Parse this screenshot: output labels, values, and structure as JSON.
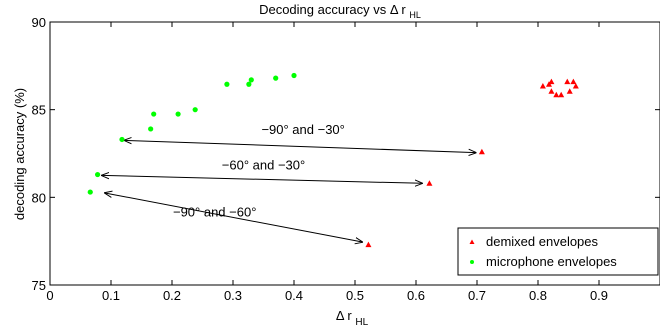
{
  "chart_data": {
    "type": "scatter",
    "title": "Decoding accuracy vs Δ r",
    "title_subscript": "HL",
    "xlabel": "Δ r",
    "xlabel_subscript": "HL",
    "ylabel": "decoding accuracy (%)",
    "xlim": [
      0,
      1
    ],
    "ylim": [
      75,
      90
    ],
    "xticks": [
      "0",
      "0.1",
      "0.2",
      "0.3",
      "0.4",
      "0.5",
      "0.6",
      "0.7",
      "0.8",
      "0.9"
    ],
    "yticks": [
      "75",
      "80",
      "85",
      "90"
    ],
    "grid": false,
    "legend_position": "bottom-right",
    "series": [
      {
        "name": "demixed envelopes",
        "marker": "triangle",
        "color": "#ff0000",
        "points": [
          {
            "x": 0.808,
            "y": 86.35
          },
          {
            "x": 0.818,
            "y": 86.45
          },
          {
            "x": 0.822,
            "y": 86.6
          },
          {
            "x": 0.822,
            "y": 86.05
          },
          {
            "x": 0.83,
            "y": 85.85
          },
          {
            "x": 0.838,
            "y": 85.85
          },
          {
            "x": 0.848,
            "y": 86.6
          },
          {
            "x": 0.852,
            "y": 86.05
          },
          {
            "x": 0.858,
            "y": 86.6
          },
          {
            "x": 0.862,
            "y": 86.35
          },
          {
            "x": 0.708,
            "y": 82.6
          },
          {
            "x": 0.622,
            "y": 80.8
          },
          {
            "x": 0.522,
            "y": 77.3
          }
        ]
      },
      {
        "name": "microphone envelopes",
        "marker": "circle",
        "color": "#00ff00",
        "points": [
          {
            "x": 0.066,
            "y": 80.3
          },
          {
            "x": 0.078,
            "y": 81.3
          },
          {
            "x": 0.118,
            "y": 83.3
          },
          {
            "x": 0.165,
            "y": 83.9
          },
          {
            "x": 0.17,
            "y": 84.75
          },
          {
            "x": 0.21,
            "y": 84.75
          },
          {
            "x": 0.238,
            "y": 85.0
          },
          {
            "x": 0.29,
            "y": 86.45
          },
          {
            "x": 0.326,
            "y": 86.45
          },
          {
            "x": 0.33,
            "y": 86.7
          },
          {
            "x": 0.37,
            "y": 86.8
          },
          {
            "x": 0.4,
            "y": 86.95
          }
        ]
      }
    ],
    "annotations": [
      {
        "text": "−90° and −30°",
        "from": {
          "x": 0.122,
          "y": 83.25
        },
        "to": {
          "x": 0.698,
          "y": 82.55
        },
        "label_at": {
          "x": 0.415,
          "y": 83.6
        }
      },
      {
        "text": "−60° and −30°",
        "from": {
          "x": 0.085,
          "y": 81.25
        },
        "to": {
          "x": 0.61,
          "y": 80.8
        },
        "label_at": {
          "x": 0.35,
          "y": 81.6
        }
      },
      {
        "text": "−90° and −60°",
        "from": {
          "x": 0.09,
          "y": 80.25
        },
        "to": {
          "x": 0.512,
          "y": 77.45
        },
        "label_at": {
          "x": 0.27,
          "y": 78.9
        }
      }
    ]
  }
}
